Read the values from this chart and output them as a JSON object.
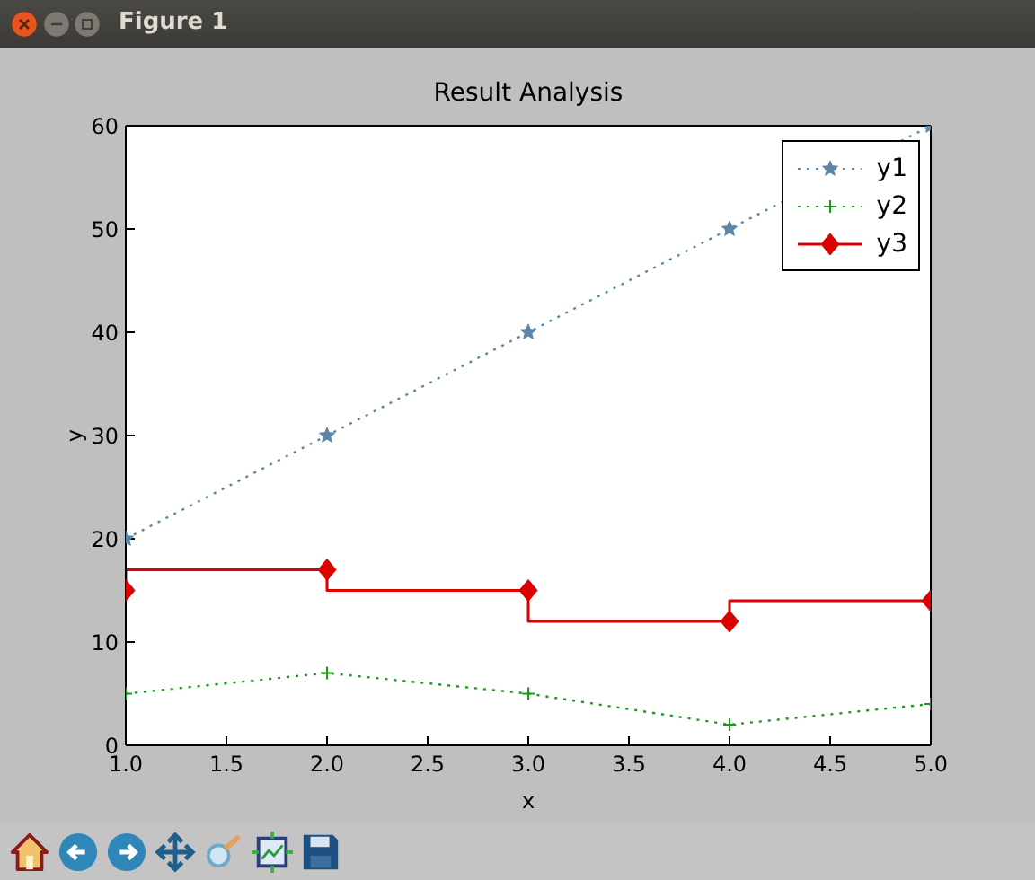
{
  "chart_data": {
    "type": "line",
    "title": "Result Analysis",
    "xlabel": "x",
    "ylabel": "y",
    "annotations": [
      "Figure 1"
    ],
    "x": [
      1,
      2,
      3,
      4,
      5
    ],
    "series": [
      {
        "name": "y1",
        "type": "line",
        "color": "#5b86a8",
        "marker": "star",
        "line_style": "dotted",
        "values": [
          20,
          30,
          40,
          50,
          60
        ]
      },
      {
        "name": "y2",
        "type": "line",
        "color": "#1a9a1a",
        "marker": "cross",
        "line_style": "dotted",
        "values": [
          5,
          7,
          5,
          2,
          4
        ]
      },
      {
        "name": "y3",
        "type": "step",
        "color": "#dd0000",
        "marker": "diamond",
        "line_style": "solid",
        "values": [
          15,
          17,
          15,
          12,
          14
        ]
      }
    ],
    "xlim": [
      1,
      5
    ],
    "xticks": [
      {
        "value": 1,
        "label": "1.0"
      },
      1.5,
      {
        "value": 2,
        "label": "2.0"
      },
      2.5,
      {
        "value": 3,
        "label": "3.0"
      },
      3.5,
      {
        "value": 4,
        "label": "4.0"
      },
      4.5,
      {
        "value": 5,
        "label": "5.0"
      }
    ],
    "ylim": [
      0,
      60
    ],
    "yticks": [
      0,
      10,
      20,
      30,
      40,
      50,
      60
    ],
    "legend": "top right"
  }
}
